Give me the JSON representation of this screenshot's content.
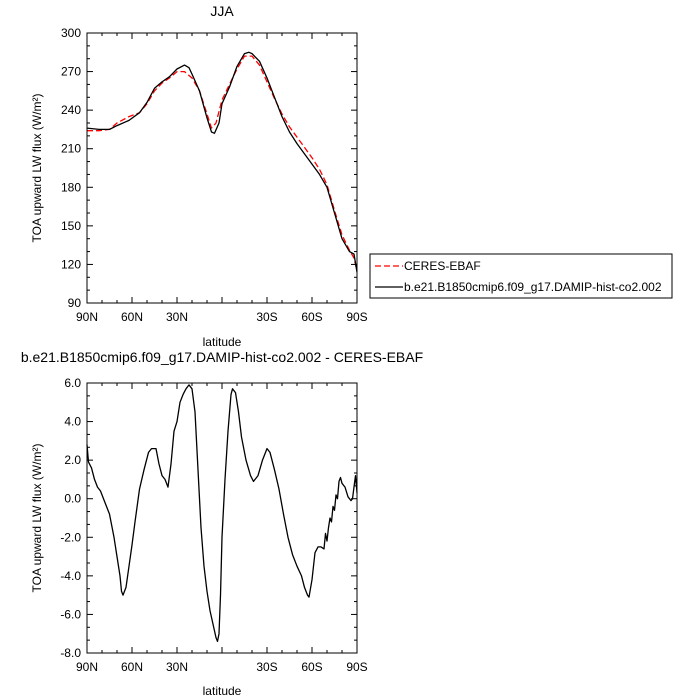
{
  "chart_data": [
    {
      "type": "line",
      "title": "JJA",
      "xlabel": "latitude",
      "ylabel": "TOA upward LW flux (W/m²)",
      "xlim": [
        90,
        -90
      ],
      "ylim": [
        90,
        300
      ],
      "x_ticks": [
        90,
        60,
        30,
        0,
        -30,
        -60,
        -90
      ],
      "x_tick_labels": [
        "90N",
        "60N",
        "30N",
        "",
        "30S",
        "60S",
        "90S"
      ],
      "y_ticks": [
        90,
        120,
        150,
        180,
        210,
        240,
        270,
        300
      ],
      "y_tick_labels": [
        "90",
        "120",
        "150",
        "180",
        "210",
        "240",
        "270",
        "300"
      ],
      "legend_position": "right",
      "series": [
        {
          "name": "CERES-EBAF",
          "color": "#ff0000",
          "dash": true,
          "points": [
            [
              90,
              224
            ],
            [
              82,
              224
            ],
            [
              75,
              225
            ],
            [
              70,
              230
            ],
            [
              62,
              235
            ],
            [
              55,
              238
            ],
            [
              50,
              245
            ],
            [
              45,
              255
            ],
            [
              40,
              261
            ],
            [
              35,
              265
            ],
            [
              30,
              270
            ],
            [
              25,
              270
            ],
            [
              20,
              265
            ],
            [
              15,
              255
            ],
            [
              10,
              237
            ],
            [
              7,
              226
            ],
            [
              4,
              230
            ],
            [
              0,
              248
            ],
            [
              -5,
              260
            ],
            [
              -10,
              272
            ],
            [
              -15,
              282
            ],
            [
              -20,
              282
            ],
            [
              -25,
              275
            ],
            [
              -30,
              262
            ],
            [
              -35,
              249
            ],
            [
              -40,
              237
            ],
            [
              -45,
              227
            ],
            [
              -50,
              219
            ],
            [
              -55,
              211
            ],
            [
              -60,
              203
            ],
            [
              -65,
              194
            ],
            [
              -70,
              182
            ],
            [
              -75,
              162
            ],
            [
              -80,
              143
            ],
            [
              -85,
              131
            ],
            [
              -88,
              125
            ],
            [
              -90,
              115
            ]
          ]
        },
        {
          "name": "b.e21.B1850cmip6.f09_g17.DAMIP-hist-co2.002",
          "color": "#000000",
          "dash": false,
          "points": [
            [
              90,
              226
            ],
            [
              82,
              225
            ],
            [
              75,
              225
            ],
            [
              70,
              228
            ],
            [
              62,
              232
            ],
            [
              55,
              238
            ],
            [
              50,
              246
            ],
            [
              45,
              257
            ],
            [
              40,
              262
            ],
            [
              35,
              266
            ],
            [
              30,
              272
            ],
            [
              25,
              275
            ],
            [
              22,
              273
            ],
            [
              20,
              268
            ],
            [
              15,
              255
            ],
            [
              10,
              234
            ],
            [
              7,
              223
            ],
            [
              5,
              222
            ],
            [
              2,
              230
            ],
            [
              0,
              245
            ],
            [
              -5,
              258
            ],
            [
              -10,
              274
            ],
            [
              -15,
              284
            ],
            [
              -18,
              285
            ],
            [
              -20,
              284
            ],
            [
              -25,
              278
            ],
            [
              -30,
              265
            ],
            [
              -35,
              250
            ],
            [
              -40,
              235
            ],
            [
              -45,
              223
            ],
            [
              -50,
              214
            ],
            [
              -55,
              206
            ],
            [
              -60,
              198
            ],
            [
              -65,
              190
            ],
            [
              -70,
              180
            ],
            [
              -75,
              160
            ],
            [
              -80,
              140
            ],
            [
              -85,
              130
            ],
            [
              -88,
              128
            ],
            [
              -90,
              114
            ]
          ]
        }
      ]
    },
    {
      "type": "line",
      "title": "b.e21.B1850cmip6.f09_g17.DAMIP-hist-co2.002 - CERES-EBAF",
      "xlabel": "latitude",
      "ylabel": "TOA upward LW flux (W/m²)",
      "xlim": [
        90,
        -90
      ],
      "ylim": [
        -8,
        6
      ],
      "x_ticks": [
        90,
        60,
        30,
        0,
        -30,
        -60,
        -90
      ],
      "x_tick_labels": [
        "90N",
        "60N",
        "30N",
        "",
        "30S",
        "60S",
        "90S"
      ],
      "y_ticks": [
        -8,
        -6,
        -4,
        -2,
        0,
        2,
        4,
        6
      ],
      "y_tick_labels": [
        "-8.0",
        "-6.0",
        "-4.0",
        "-2.0",
        "0.0",
        "2.0",
        "4.0",
        "6.0"
      ],
      "series": [
        {
          "name": "",
          "color": "#000000",
          "dash": false,
          "points": [
            [
              90,
              2.8
            ],
            [
              89,
              1.9
            ],
            [
              87,
              1.6
            ],
            [
              85,
              1.0
            ],
            [
              83,
              0.6
            ],
            [
              81,
              0.4
            ],
            [
              78,
              -0.2
            ],
            [
              75,
              -0.8
            ],
            [
              72,
              -2.0
            ],
            [
              70,
              -3.0
            ],
            [
              68,
              -4.0
            ],
            [
              67,
              -4.8
            ],
            [
              66,
              -5.0
            ],
            [
              64,
              -4.6
            ],
            [
              62,
              -3.5
            ],
            [
              60,
              -2.4
            ],
            [
              58,
              -1.2
            ],
            [
              55,
              0.5
            ],
            [
              52,
              1.5
            ],
            [
              49,
              2.4
            ],
            [
              47,
              2.6
            ],
            [
              44,
              2.6
            ],
            [
              42,
              1.8
            ],
            [
              40,
              1.2
            ],
            [
              38,
              1.0
            ],
            [
              36,
              0.6
            ],
            [
              34,
              1.8
            ],
            [
              32,
              3.5
            ],
            [
              30,
              4.0
            ],
            [
              28,
              5.0
            ],
            [
              26,
              5.4
            ],
            [
              24,
              5.7
            ],
            [
              22,
              5.9
            ],
            [
              20,
              5.7
            ],
            [
              18,
              4.5
            ],
            [
              16,
              1.5
            ],
            [
              14,
              -1.5
            ],
            [
              12,
              -3.5
            ],
            [
              10,
              -4.8
            ],
            [
              8,
              -5.8
            ],
            [
              6,
              -6.5
            ],
            [
              4,
              -7.2
            ],
            [
              3,
              -7.4
            ],
            [
              2,
              -7.0
            ],
            [
              1,
              -5.0
            ],
            [
              0,
              -2.0
            ],
            [
              -2,
              1.0
            ],
            [
              -4,
              3.5
            ],
            [
              -6,
              5.4
            ],
            [
              -7,
              5.7
            ],
            [
              -9,
              5.5
            ],
            [
              -11,
              4.5
            ],
            [
              -13,
              3.2
            ],
            [
              -16,
              2.0
            ],
            [
              -19,
              1.2
            ],
            [
              -21,
              0.9
            ],
            [
              -24,
              1.2
            ],
            [
              -27,
              2.0
            ],
            [
              -30,
              2.6
            ],
            [
              -32,
              2.4
            ],
            [
              -35,
              1.5
            ],
            [
              -38,
              0.5
            ],
            [
              -41,
              -0.8
            ],
            [
              -44,
              -2.0
            ],
            [
              -47,
              -2.9
            ],
            [
              -50,
              -3.5
            ],
            [
              -53,
              -4.0
            ],
            [
              -55,
              -4.6
            ],
            [
              -57,
              -5.0
            ],
            [
              -58,
              -5.1
            ],
            [
              -60,
              -4.2
            ],
            [
              -62,
              -2.8
            ],
            [
              -64,
              -2.5
            ],
            [
              -66,
              -2.5
            ],
            [
              -68,
              -2.6
            ],
            [
              -69,
              -1.8
            ],
            [
              -70,
              -2.2
            ],
            [
              -71,
              -1.5
            ],
            [
              -72,
              -1.0
            ],
            [
              -73,
              -1.2
            ],
            [
              -74,
              -0.4
            ],
            [
              -75,
              -0.6
            ],
            [
              -76,
              0.2
            ],
            [
              -77,
              0.0
            ],
            [
              -78,
              0.9
            ],
            [
              -79,
              1.1
            ],
            [
              -80,
              0.8
            ],
            [
              -82,
              0.6
            ],
            [
              -84,
              0.1
            ],
            [
              -86,
              -0.1
            ],
            [
              -87,
              0.0
            ],
            [
              -88,
              0.6
            ],
            [
              -89,
              1.2
            ],
            [
              -90,
              0.3
            ]
          ]
        }
      ]
    }
  ]
}
